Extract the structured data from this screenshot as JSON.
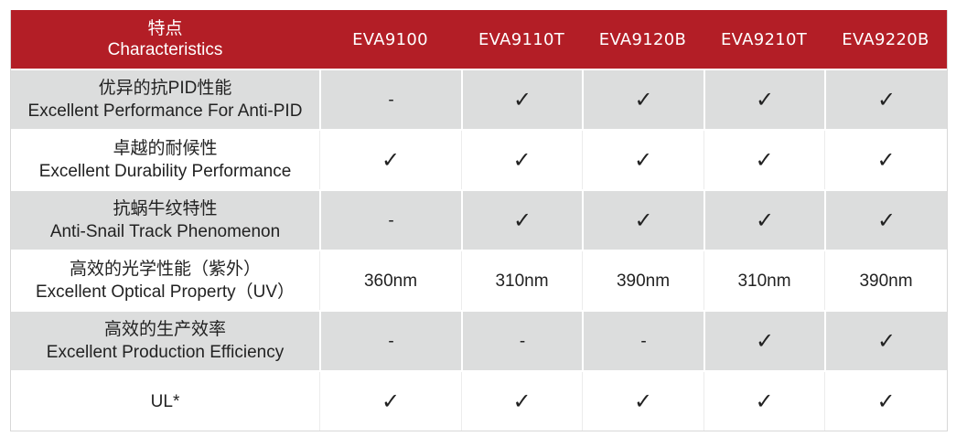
{
  "header": {
    "characteristics_zh": "特点",
    "characteristics_en": "Characteristics",
    "models": [
      "EVA9100",
      "EVA9110T",
      "EVA9120B",
      "EVA9210T",
      "EVA9220B"
    ]
  },
  "rows": [
    {
      "zh": "优异的抗PID性能",
      "en": "Excellent Performance For Anti-PID",
      "values": [
        "-",
        "✓",
        "✓",
        "✓",
        "✓"
      ]
    },
    {
      "zh": "卓越的耐候性",
      "en": "Excellent Durability Performance",
      "values": [
        "✓",
        "✓",
        "✓",
        "✓",
        "✓"
      ]
    },
    {
      "zh": "抗蜗牛纹特性",
      "en": "Anti-Snail Track Phenomenon",
      "values": [
        "-",
        "✓",
        "✓",
        "✓",
        "✓"
      ]
    },
    {
      "zh": "高效的光学性能（紫外）",
      "en": "Excellent Optical Property（UV）",
      "values": [
        "360nm",
        "310nm",
        "390nm",
        "310nm",
        "390nm"
      ]
    },
    {
      "zh": "高效的生产效率",
      "en": "Excellent  Production Efficiency",
      "values": [
        "-",
        "-",
        "-",
        "✓",
        "✓"
      ]
    },
    {
      "zh": "",
      "en": "UL*",
      "values": [
        "✓",
        "✓",
        "✓",
        "✓",
        "✓"
      ]
    }
  ],
  "colors": {
    "header_bg": "#b31e26",
    "grey_row": "#dcdddd"
  }
}
